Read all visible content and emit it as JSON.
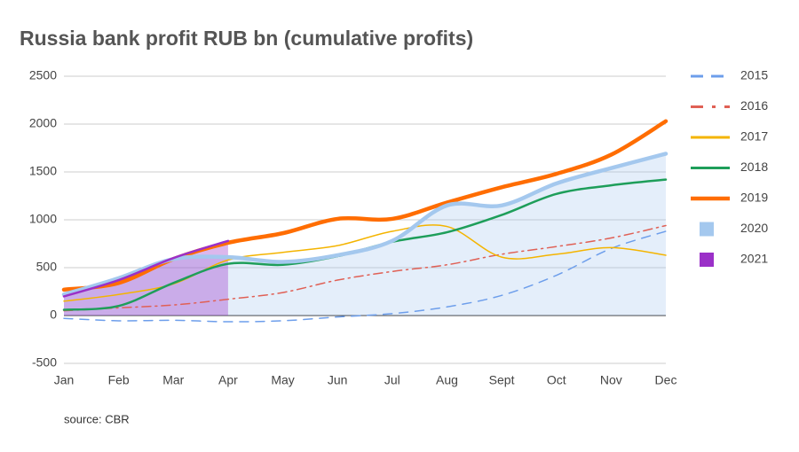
{
  "chart_data": {
    "type": "line",
    "title": "Russia bank profit RUB bn (cumulative profits)",
    "source": "source: CBR",
    "categories": [
      "Jan",
      "Feb",
      "Mar",
      "Apr",
      "May",
      "Jun",
      "Jul",
      "Aug",
      "Sept",
      "Oct",
      "Nov",
      "Dec"
    ],
    "series": [
      {
        "name": "2015",
        "color": "#6d9eeb",
        "style": "dashed",
        "width": 1.5,
        "values": [
          -30,
          -55,
          -50,
          -65,
          -55,
          -15,
          20,
          90,
          210,
          420,
          700,
          880
        ]
      },
      {
        "name": "2016",
        "color": "#e06055",
        "style": "dashdot",
        "width": 1.5,
        "values": [
          50,
          80,
          110,
          170,
          240,
          370,
          460,
          530,
          640,
          720,
          810,
          940
        ]
      },
      {
        "name": "2017",
        "color": "#f4b400",
        "style": "solid",
        "width": 1.5,
        "values": [
          150,
          220,
          330,
          580,
          660,
          730,
          880,
          930,
          610,
          640,
          710,
          630
        ]
      },
      {
        "name": "2018",
        "color": "#1e9e5a",
        "style": "solid",
        "width": 2.5,
        "values": [
          60,
          100,
          340,
          540,
          530,
          620,
          770,
          870,
          1050,
          1270,
          1360,
          1420
        ]
      },
      {
        "name": "2019",
        "color": "#ff6d01",
        "style": "solid",
        "width": 4.5,
        "values": [
          270,
          340,
          590,
          760,
          860,
          1010,
          1010,
          1180,
          1340,
          1480,
          1680,
          2030
        ]
      },
      {
        "name": "2020",
        "color": "#a4c8ee",
        "style": "area",
        "width": 4.5,
        "values": [
          220,
          390,
          590,
          610,
          560,
          630,
          780,
          1150,
          1150,
          1380,
          1540,
          1690
        ]
      },
      {
        "name": "2021",
        "color": "#9b30c8",
        "style": "area",
        "width": 2.5,
        "values": [
          200,
          370,
          600,
          780,
          null,
          null,
          null,
          null,
          null,
          null,
          null,
          null
        ]
      }
    ],
    "ylim": [
      -500,
      2500
    ],
    "yticks": [
      -500,
      0,
      500,
      1000,
      1500,
      2000,
      2500
    ],
    "grid": true
  }
}
